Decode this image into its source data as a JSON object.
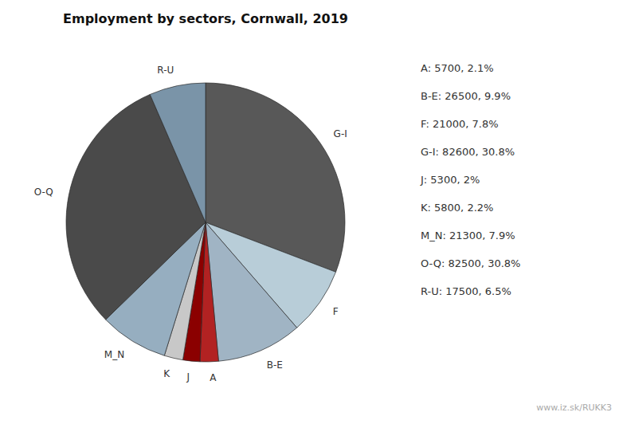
{
  "chart_data": {
    "type": "pie",
    "title": "Employment by sectors, Cornwall, 2019",
    "categories": [
      "G-I",
      "F",
      "B-E",
      "A",
      "J",
      "K",
      "M_N",
      "O-Q",
      "R-U"
    ],
    "values": [
      82600,
      21000,
      26500,
      5700,
      5300,
      5800,
      21300,
      82500,
      17500
    ],
    "colors": [
      "#585858",
      "#b8cdd8",
      "#a0b4c4",
      "#b22222",
      "#8b0000",
      "#c8c8c8",
      "#96aec0",
      "#4a4a4a",
      "#7a94a8"
    ],
    "annotations": [
      "A: 5700, 2.1%",
      "B-E: 26500, 9.9%",
      "F: 21000, 7.8%",
      "G-I: 82600, 30.8%",
      "J: 5300, 2%",
      "K: 5800, 2.2%",
      "M_N: 21300, 7.9%",
      "O-Q: 82500, 30.8%",
      "R-U: 17500, 6.5%",
      "www.iz.sk/RUKK3"
    ]
  }
}
